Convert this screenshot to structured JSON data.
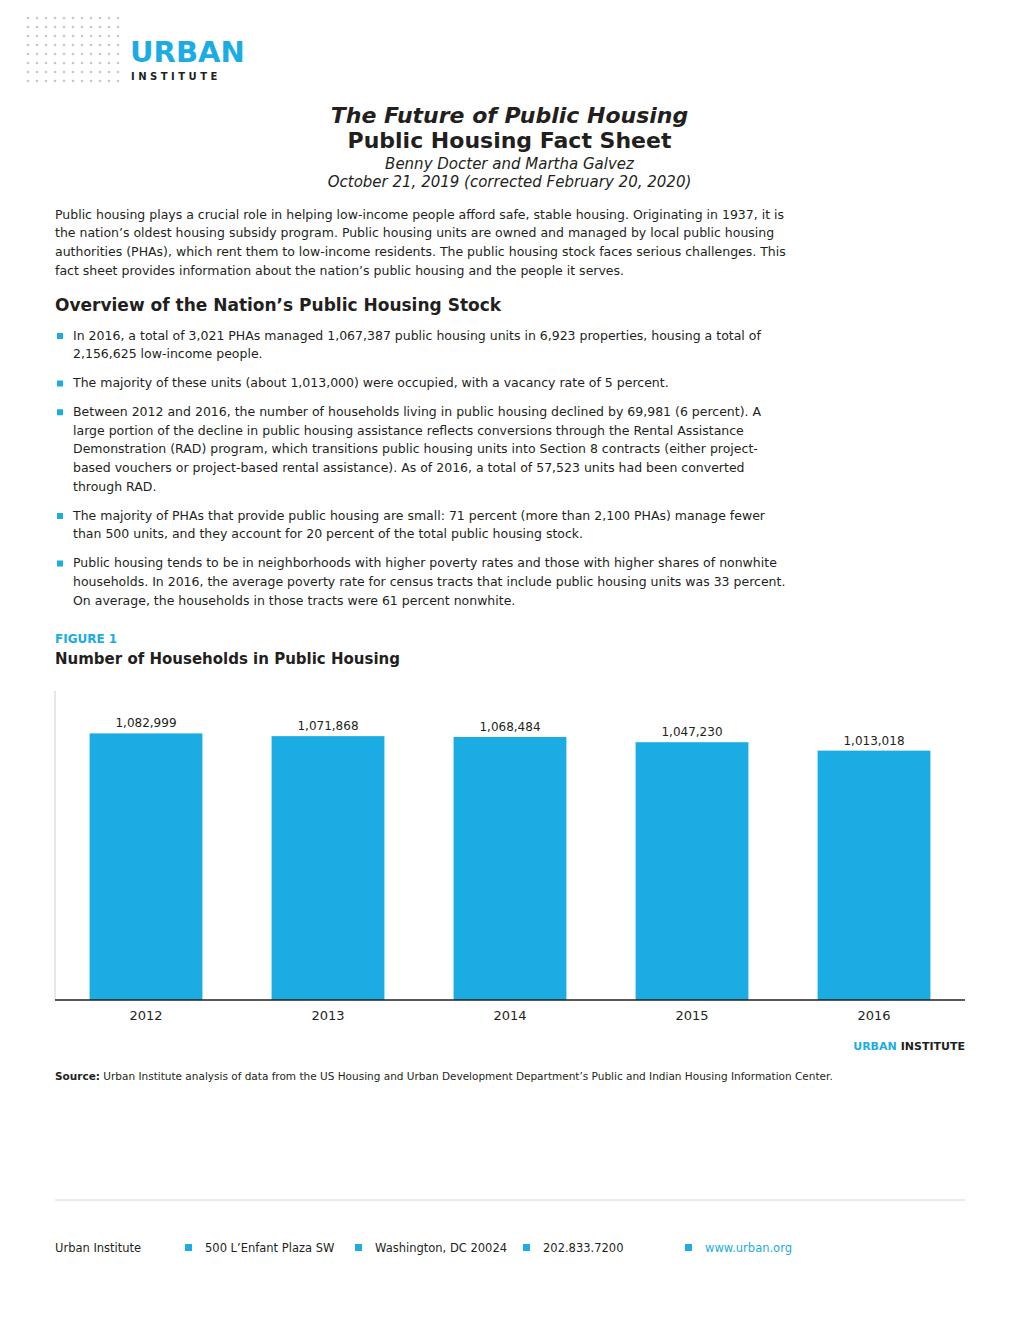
{
  "chart_data": {
    "type": "bar",
    "title": "Number of Households in Public Housing",
    "categories": [
      "2012",
      "2013",
      "2014",
      "2015",
      "2016"
    ],
    "values": [
      1082999,
      1071868,
      1068484,
      1047230,
      1013018
    ],
    "value_labels": [
      "1,082,999",
      "1,071,868",
      "1,068,484",
      "1,047,230",
      "1,013,018"
    ],
    "data_labels": true,
    "color": "#1aace3",
    "ylim": [
      0,
      1256278.84
    ],
    "yticks": [],
    "tick_labels": "x",
    "grid": false
  },
  "page": {
    "logo_urban": "URBAN",
    "logo_institute": "I N S T I T U T E",
    "title_line1": "The Future of Public Housing",
    "title_line2": "Public Housing Fact Sheet",
    "subtitle_line1": "Benny Docter and Martha Galvez",
    "subtitle_line2": "October 21, 2019 (corrected February 20, 2020)",
    "intro_text": "Public housing plays a crucial role in helping low-income people afford safe, stable housing. Originating in 1937, it is\nthe nation’s oldest housing subsidy program. Public housing units are owned and managed by local public housing\nauthorities (PHAs), which rent them to low-income residents. The public housing stock faces serious challenges. This\nfact sheet provides information about the nation’s public housing and the people it serves.",
    "section_title": "Overview of the Nation’s Public Housing Stock",
    "bullets": [
      "In 2016, a total of 3,021 PHAs managed 1,067,387 public housing units in 6,923 properties, housing a total of\n2,156,625 low-income people.",
      "The majority of these units (about 1,013,000) were occupied, with a vacancy rate of 5 percent.",
      "Between 2012 and 2016, the number of households living in public housing declined by 69,981 (6 percent). A\nlarge portion of the decline in public housing assistance reflects conversions through the Rental Assistance\nDemonstration (RAD) program, which transitions public housing units into Section 8 contracts (either project-\nbased vouchers or project-based rental assistance). As of 2016, a total of 57,523 units had been converted\nthrough RAD.",
      "The majority of PHAs that provide public housing are small: 71 percent (more than 2,100 PHAs) manage fewer\nthan 500 units, and they account for 20 percent of the total public housing stock.",
      "Public housing tends to be in neighborhoods with higher poverty rates and those with higher shares of nonwhite\nhouseholds. In 2016, the average poverty rate for census tracts that include public housing units was 33 percent.\nOn average, the households in those tracts were 61 percent nonwhite."
    ],
    "figure_label": "FIGURE 1",
    "watermark_urban": "URBAN",
    "watermark_institute": "INSTITUTE",
    "source_bold": "Source:",
    "source_text": " Urban Institute analysis of data from the US Housing and Urban Development Department’s Public and Indian Housing Information Center.",
    "footer_items": [
      "Urban Institute",
      "500 L’Enfant Plaza SW",
      "Washington, DC 20024",
      "202.833.7200",
      "www.urban.org"
    ]
  }
}
